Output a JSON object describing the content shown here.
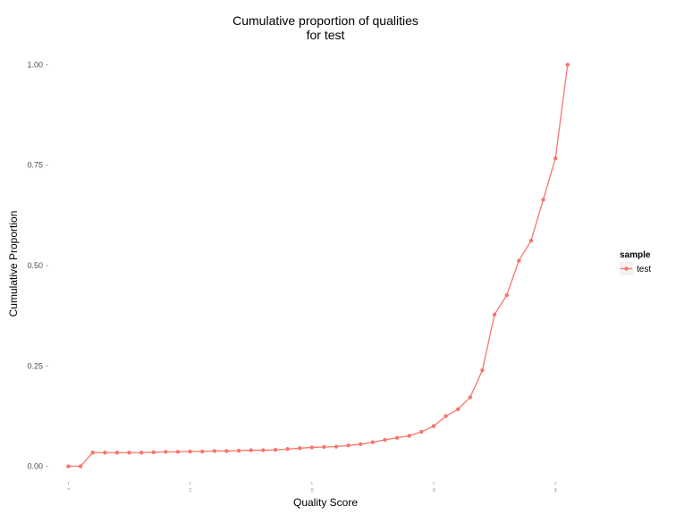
{
  "chart_data": {
    "type": "line",
    "title_lines": [
      "Cumulative proportion of qualities",
      "for test"
    ],
    "xlabel": "Quality Score",
    "ylabel": "Cumulative Proportion",
    "xlim": [
      -1.5,
      43
    ],
    "ylim": [
      -0.03,
      1.05
    ],
    "x_ticks": [
      0,
      10,
      20,
      30,
      40
    ],
    "x_tick_labels": [
      "0",
      "10",
      "20",
      "30",
      "40"
    ],
    "y_ticks": [
      0,
      0.25,
      0.5,
      0.75,
      1.0
    ],
    "y_tick_labels": [
      "0.00",
      "0.25",
      "0.50",
      "0.75",
      "1.00"
    ],
    "grid": false,
    "legend_position": "right",
    "legend_title": "sample",
    "colors": {
      "series": "#F8766D",
      "axis_line": "#b3b3b3",
      "legend_key_bg": "#f2f2f2"
    },
    "series": [
      {
        "name": "test",
        "x": [
          0,
          1,
          2,
          3,
          4,
          5,
          6,
          7,
          8,
          9,
          10,
          11,
          12,
          13,
          14,
          15,
          16,
          17,
          18,
          19,
          20,
          21,
          22,
          23,
          24,
          25,
          26,
          27,
          28,
          29,
          30,
          31,
          32,
          33,
          34,
          35,
          36,
          37,
          38,
          39,
          40,
          41
        ],
        "values": [
          0.0,
          0.0,
          0.034,
          0.034,
          0.034,
          0.034,
          0.034,
          0.035,
          0.036,
          0.036,
          0.037,
          0.037,
          0.038,
          0.038,
          0.039,
          0.04,
          0.04,
          0.041,
          0.043,
          0.045,
          0.047,
          0.048,
          0.049,
          0.052,
          0.055,
          0.06,
          0.066,
          0.071,
          0.076,
          0.086,
          0.1,
          0.125,
          0.142,
          0.172,
          0.239,
          0.378,
          0.426,
          0.512,
          0.562,
          0.664,
          0.767,
          1.0
        ]
      }
    ]
  }
}
